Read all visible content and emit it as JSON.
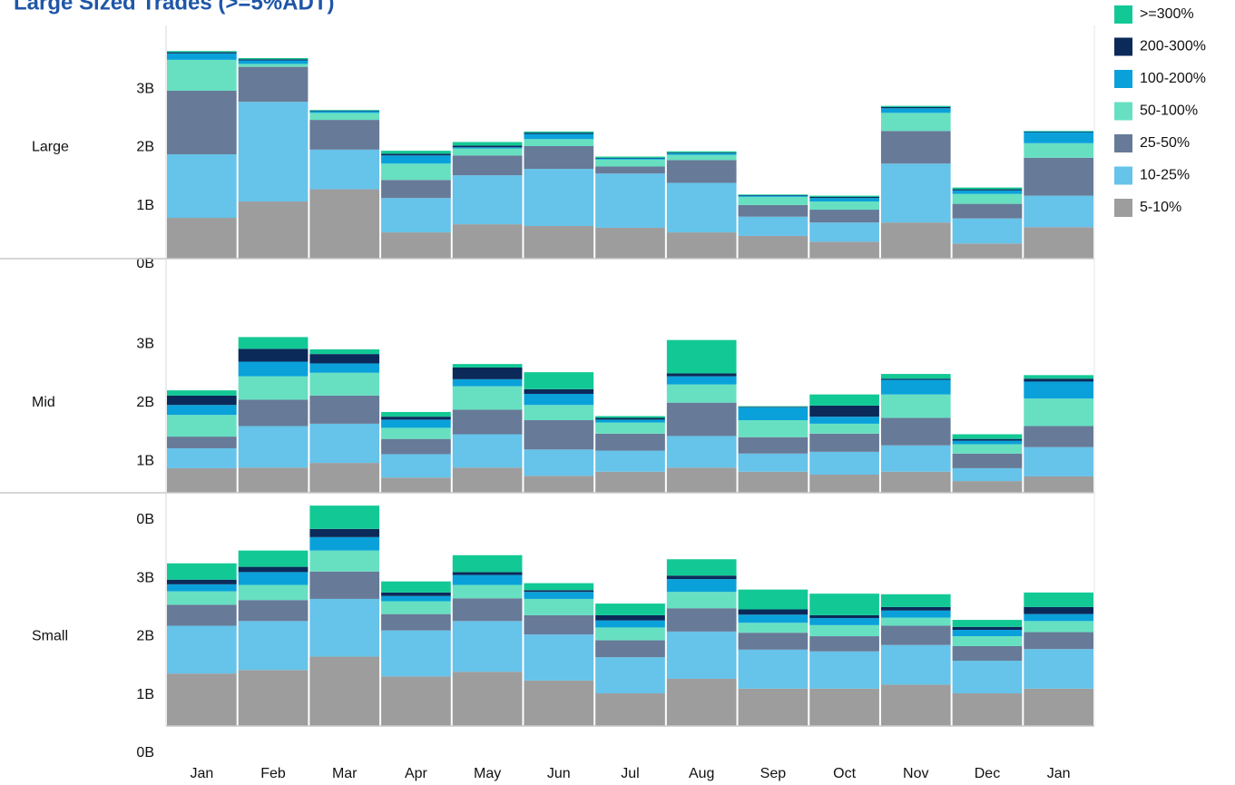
{
  "title": "Large Sized Trades (>=5%ADT)",
  "chart_data": [
    {
      "type": "bar",
      "stacked": true,
      "title": "Large",
      "categories": [
        "Jan",
        "Feb",
        "Mar",
        "Apr",
        "May",
        "Jun",
        "Jul",
        "Aug",
        "Sep",
        "Oct",
        "Nov",
        "Dec",
        "Jan"
      ],
      "ylim": [
        0,
        4
      ],
      "yticks": [
        {
          "value": 0,
          "label": "0B"
        },
        {
          "value": 1,
          "label": "1B"
        },
        {
          "value": 2,
          "label": "2B"
        },
        {
          "value": 3,
          "label": "3B"
        }
      ],
      "series": [
        {
          "name": "5-10%",
          "color": "#9d9d9d",
          "values": [
            0.7,
            0.98,
            1.19,
            0.45,
            0.59,
            0.56,
            0.53,
            0.45,
            0.39,
            0.29,
            0.62,
            0.26,
            0.54
          ]
        },
        {
          "name": "10-25%",
          "color": "#66c3e9",
          "values": [
            1.09,
            1.71,
            0.68,
            0.59,
            0.84,
            0.98,
            0.93,
            0.85,
            0.33,
            0.33,
            1.01,
            0.43,
            0.54
          ]
        },
        {
          "name": "25-50%",
          "color": "#677a98",
          "values": [
            1.09,
            0.6,
            0.51,
            0.31,
            0.34,
            0.39,
            0.12,
            0.39,
            0.2,
            0.22,
            0.56,
            0.25,
            0.65
          ]
        },
        {
          "name": "50-100%",
          "color": "#67e0c2",
          "values": [
            0.53,
            0.05,
            0.12,
            0.28,
            0.12,
            0.12,
            0.12,
            0.09,
            0.14,
            0.14,
            0.31,
            0.17,
            0.25
          ]
        },
        {
          "name": "100-200%",
          "color": "#0aa1da",
          "values": [
            0.11,
            0.06,
            0.03,
            0.14,
            0.02,
            0.09,
            0.02,
            0.03,
            0.02,
            0.06,
            0.08,
            0.06,
            0.19
          ]
        },
        {
          "name": "200-300%",
          "color": "#0b2a5a",
          "values": [
            0.02,
            0.02,
            0.01,
            0.03,
            0.03,
            0.02,
            0.01,
            0.01,
            0.01,
            0.02,
            0.02,
            0.02,
            0.01
          ]
        },
        {
          "name": ">=300%",
          "color": "#12c995",
          "values": [
            0.02,
            0.02,
            0.01,
            0.05,
            0.06,
            0.02,
            0.02,
            0.02,
            0.01,
            0.02,
            0.02,
            0.03,
            0.01
          ]
        }
      ]
    },
    {
      "type": "bar",
      "stacked": true,
      "title": "Mid",
      "categories": [
        "Jan",
        "Feb",
        "Mar",
        "Apr",
        "May",
        "Jun",
        "Jul",
        "Aug",
        "Sep",
        "Oct",
        "Nov",
        "Dec",
        "Jan"
      ],
      "ylim": [
        0,
        4
      ],
      "yticks": [
        {
          "value": 0,
          "label": "0B"
        },
        {
          "value": 1,
          "label": "1B"
        },
        {
          "value": 2,
          "label": "2B"
        },
        {
          "value": 3,
          "label": "3B"
        }
      ],
      "series": [
        {
          "name": "5-10%",
          "color": "#9d9d9d",
          "values": [
            0.42,
            0.43,
            0.51,
            0.26,
            0.43,
            0.29,
            0.36,
            0.43,
            0.36,
            0.31,
            0.36,
            0.2,
            0.28
          ]
        },
        {
          "name": "10-25%",
          "color": "#66c3e9",
          "values": [
            0.34,
            0.71,
            0.67,
            0.4,
            0.57,
            0.45,
            0.36,
            0.54,
            0.31,
            0.39,
            0.45,
            0.22,
            0.5
          ]
        },
        {
          "name": "25-50%",
          "color": "#677a98",
          "values": [
            0.2,
            0.45,
            0.48,
            0.26,
            0.42,
            0.5,
            0.29,
            0.57,
            0.28,
            0.31,
            0.47,
            0.25,
            0.36
          ]
        },
        {
          "name": "50-100%",
          "color": "#67e0c2",
          "values": [
            0.37,
            0.4,
            0.39,
            0.19,
            0.4,
            0.26,
            0.19,
            0.31,
            0.29,
            0.17,
            0.4,
            0.16,
            0.47
          ]
        },
        {
          "name": "100-200%",
          "color": "#0aa1da",
          "values": [
            0.17,
            0.25,
            0.16,
            0.14,
            0.12,
            0.19,
            0.05,
            0.14,
            0.22,
            0.12,
            0.25,
            0.06,
            0.29
          ]
        },
        {
          "name": "200-300%",
          "color": "#0b2a5a",
          "values": [
            0.16,
            0.22,
            0.16,
            0.05,
            0.2,
            0.08,
            0.03,
            0.05,
            0.01,
            0.19,
            0.02,
            0.03,
            0.05
          ]
        },
        {
          "name": ">=300%",
          "color": "#12c995",
          "values": [
            0.09,
            0.2,
            0.08,
            0.08,
            0.06,
            0.29,
            0.03,
            0.57,
            0.01,
            0.19,
            0.08,
            0.08,
            0.06
          ]
        }
      ]
    },
    {
      "type": "bar",
      "stacked": true,
      "title": "Small",
      "categories": [
        "Jan",
        "Feb",
        "Mar",
        "Apr",
        "May",
        "Jun",
        "Jul",
        "Aug",
        "Sep",
        "Oct",
        "Nov",
        "Dec",
        "Jan"
      ],
      "ylim": [
        0,
        4
      ],
      "yticks": [
        {
          "value": 0,
          "label": "0B"
        },
        {
          "value": 1,
          "label": "1B"
        },
        {
          "value": 2,
          "label": "2B"
        },
        {
          "value": 3,
          "label": "3B"
        }
      ],
      "series": [
        {
          "name": "5-10%",
          "color": "#9d9d9d",
          "values": [
            0.9,
            0.96,
            1.19,
            0.85,
            0.93,
            0.78,
            0.56,
            0.81,
            0.64,
            0.64,
            0.71,
            0.56,
            0.64
          ]
        },
        {
          "name": "10-25%",
          "color": "#66c3e9",
          "values": [
            0.82,
            0.84,
            0.99,
            0.79,
            0.87,
            0.79,
            0.62,
            0.81,
            0.67,
            0.64,
            0.68,
            0.56,
            0.68
          ]
        },
        {
          "name": "25-50%",
          "color": "#677a98",
          "values": [
            0.36,
            0.36,
            0.47,
            0.28,
            0.39,
            0.33,
            0.29,
            0.4,
            0.29,
            0.26,
            0.33,
            0.25,
            0.29
          ]
        },
        {
          "name": "50-100%",
          "color": "#67e0c2",
          "values": [
            0.23,
            0.26,
            0.36,
            0.22,
            0.23,
            0.28,
            0.22,
            0.28,
            0.17,
            0.19,
            0.14,
            0.17,
            0.19
          ]
        },
        {
          "name": "100-200%",
          "color": "#0aa1da",
          "values": [
            0.12,
            0.22,
            0.23,
            0.09,
            0.17,
            0.12,
            0.12,
            0.22,
            0.14,
            0.12,
            0.12,
            0.11,
            0.12
          ]
        },
        {
          "name": "200-300%",
          "color": "#0b2a5a",
          "values": [
            0.08,
            0.09,
            0.14,
            0.06,
            0.05,
            0.03,
            0.09,
            0.06,
            0.09,
            0.05,
            0.06,
            0.05,
            0.12
          ]
        },
        {
          "name": ">=300%",
          "color": "#12c995",
          "values": [
            0.28,
            0.28,
            0.4,
            0.19,
            0.29,
            0.12,
            0.2,
            0.28,
            0.34,
            0.37,
            0.22,
            0.12,
            0.25
          ]
        }
      ]
    }
  ]
}
